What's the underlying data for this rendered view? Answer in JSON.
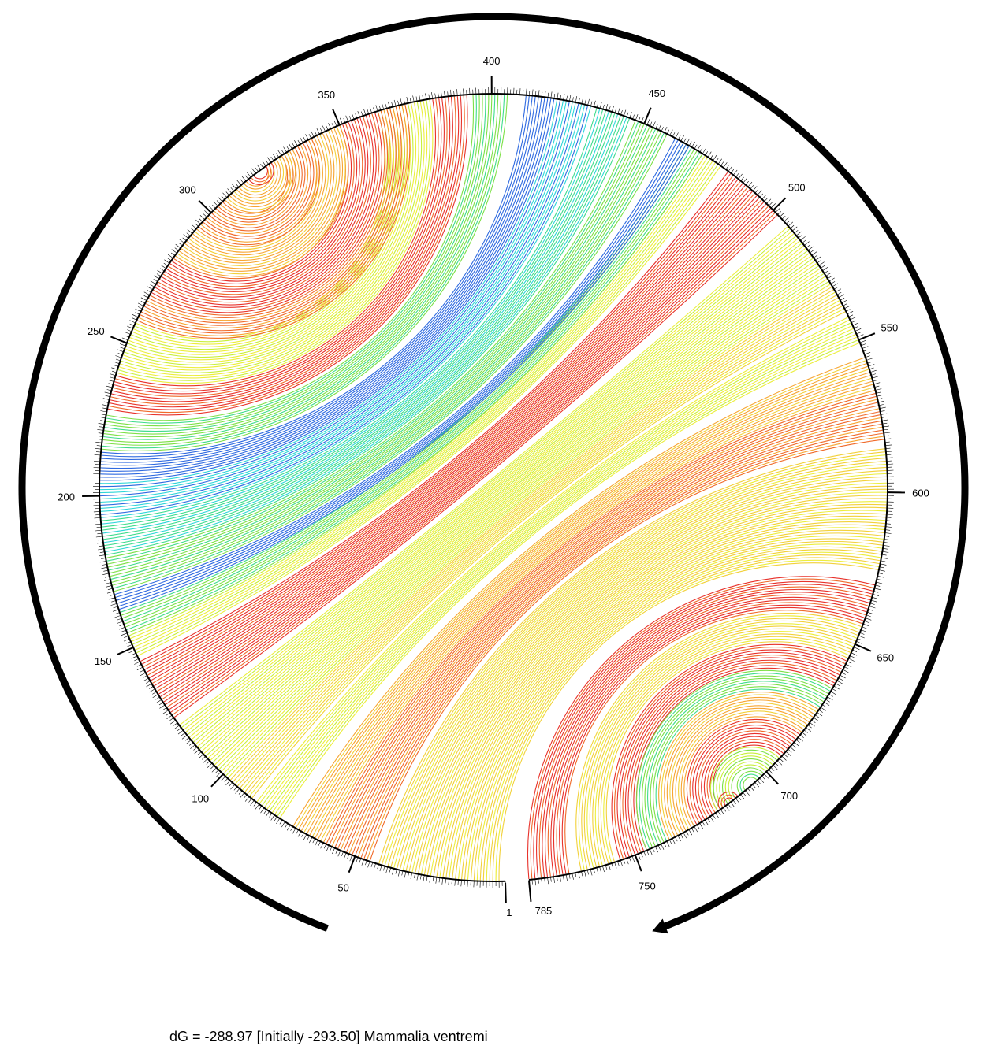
{
  "chart_data": {
    "type": "circle-plot",
    "sequence_length": 785,
    "start_label": "1",
    "end_label": "785",
    "ticks": [
      50,
      100,
      150,
      200,
      250,
      300,
      350,
      400,
      450,
      500,
      550,
      600,
      650,
      700,
      750
    ],
    "color_scale": [
      "#e8322b",
      "#f06a2a",
      "#f7a531",
      "#f2d13a",
      "#ecee3c",
      "#c8ef3a",
      "#7de046",
      "#3fdc8c",
      "#2fd6d8",
      "#2f6ae0"
    ],
    "helices": [
      {
        "i": 3,
        "j": 625,
        "n": 40,
        "color": 3
      },
      {
        "i": 45,
        "j": 583,
        "n": 16,
        "color": 1
      },
      {
        "i": 61,
        "j": 567,
        "n": 12,
        "color": 2
      },
      {
        "i": 77,
        "j": 551,
        "n": 10,
        "color": 4
      },
      {
        "i": 88,
        "j": 540,
        "n": 10,
        "color": 3
      },
      {
        "i": 98,
        "j": 530,
        "n": 24,
        "color": 4
      },
      {
        "i": 124,
        "j": 502,
        "n": 22,
        "color": 0
      },
      {
        "i": 147,
        "j": 478,
        "n": 8,
        "color": 4
      },
      {
        "i": 155,
        "j": 471,
        "n": 8,
        "color": 6
      },
      {
        "i": 163,
        "j": 466,
        "n": 6,
        "color": 9
      },
      {
        "i": 169,
        "j": 458,
        "n": 12,
        "color": 6
      },
      {
        "i": 181,
        "j": 445,
        "n": 12,
        "color": 7
      },
      {
        "i": 193,
        "j": 432,
        "n": 12,
        "color": 8
      },
      {
        "i": 205,
        "j": 420,
        "n": 10,
        "color": 9
      },
      {
        "i": 215,
        "j": 405,
        "n": 12,
        "color": 6
      },
      {
        "i": 228,
        "j": 392,
        "n": 12,
        "color": 0
      },
      {
        "i": 240,
        "j": 380,
        "n": 18,
        "color": 4
      },
      {
        "i": 258,
        "j": 372,
        "n": 10,
        "color": 1
      },
      {
        "i": 268,
        "j": 362,
        "n": 14,
        "color": 0
      },
      {
        "i": 282,
        "j": 350,
        "n": 12,
        "color": 2
      },
      {
        "i": 294,
        "j": 340,
        "n": 12,
        "color": 1
      },
      {
        "i": 306,
        "j": 332,
        "n": 10,
        "color": 2
      },
      {
        "i": 316,
        "j": 325,
        "n": 3,
        "color": 0
      },
      {
        "i": 630,
        "j": 785,
        "n": 14,
        "color": 0
      },
      {
        "i": 644,
        "j": 768,
        "n": 12,
        "color": 3
      },
      {
        "i": 656,
        "j": 755,
        "n": 10,
        "color": 0
      },
      {
        "i": 666,
        "j": 746,
        "n": 8,
        "color": 6
      },
      {
        "i": 674,
        "j": 738,
        "n": 10,
        "color": 2
      },
      {
        "i": 684,
        "j": 728,
        "n": 10,
        "color": 0
      },
      {
        "i": 694,
        "j": 720,
        "n": 8,
        "color": 5
      },
      {
        "i": 702,
        "j": 711,
        "n": 3,
        "color": 6
      },
      {
        "i": 712,
        "j": 719,
        "n": 3,
        "color": 0
      }
    ]
  },
  "caption": "dG = -288.97 [Initially -293.50] Mammalia ventremi"
}
